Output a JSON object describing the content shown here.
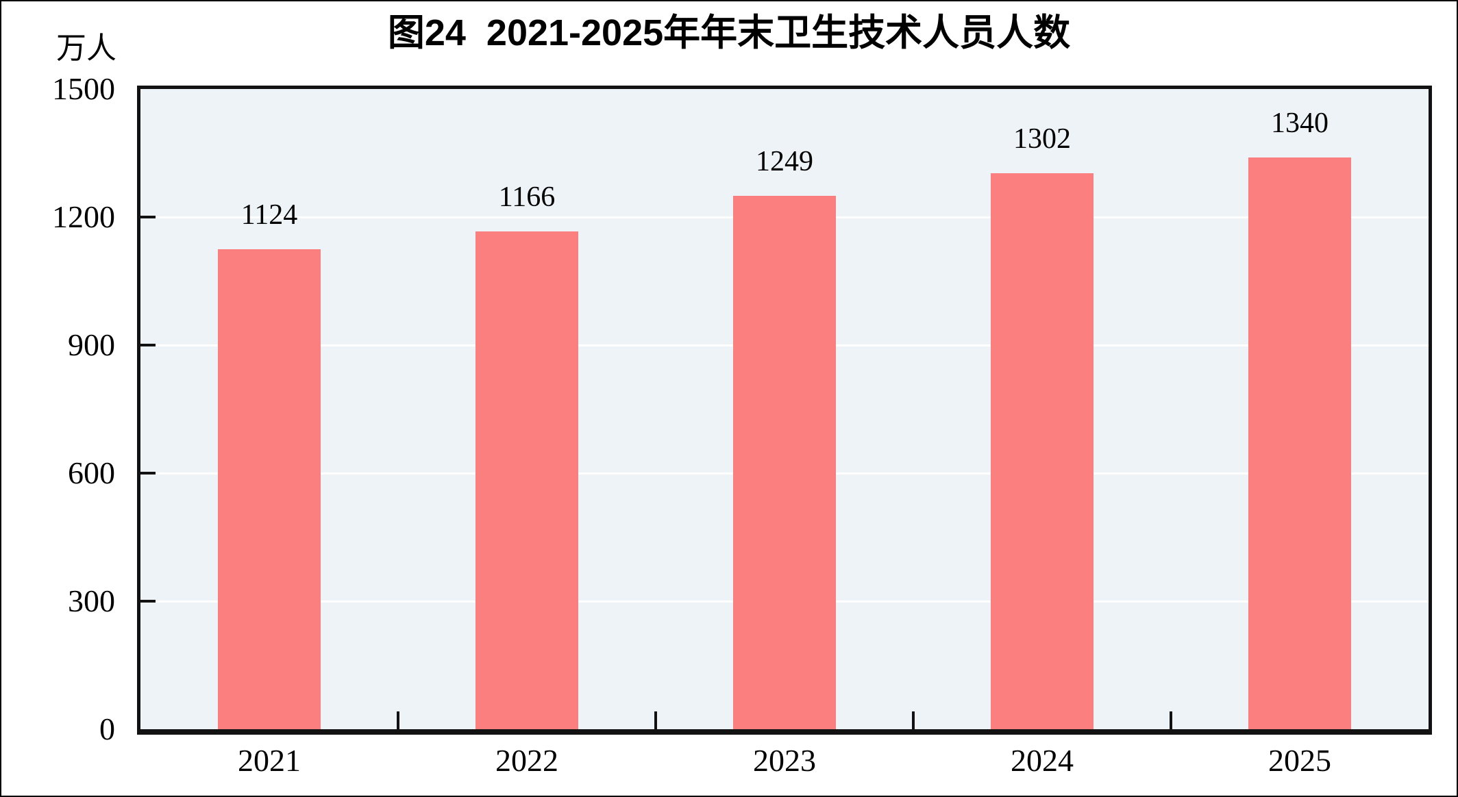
{
  "chart_data": {
    "type": "bar",
    "title": "图24  2021-2025年年末卫生技术人员人数",
    "categories": [
      "2021",
      "2022",
      "2023",
      "2024",
      "2025"
    ],
    "values": [
      1124,
      1166,
      1249,
      1302,
      1340
    ],
    "data_labels": [
      "1124",
      "1166",
      "1249",
      "1302",
      "1340"
    ],
    "xlabel": "",
    "ylabel": "万人",
    "ylim": [
      0,
      1500
    ],
    "yticks": [
      0,
      300,
      600,
      900,
      1200,
      1500
    ],
    "ytick_labels": [
      "0",
      "300",
      "600",
      "900",
      "1200",
      "1500"
    ],
    "grid": "horizontal",
    "legend": "none",
    "colors": {
      "bar": "#fb7f7e",
      "plot_background": "#edf3f6",
      "gridline": "#ffffff",
      "axis": "#121212",
      "text": "#000000"
    }
  }
}
